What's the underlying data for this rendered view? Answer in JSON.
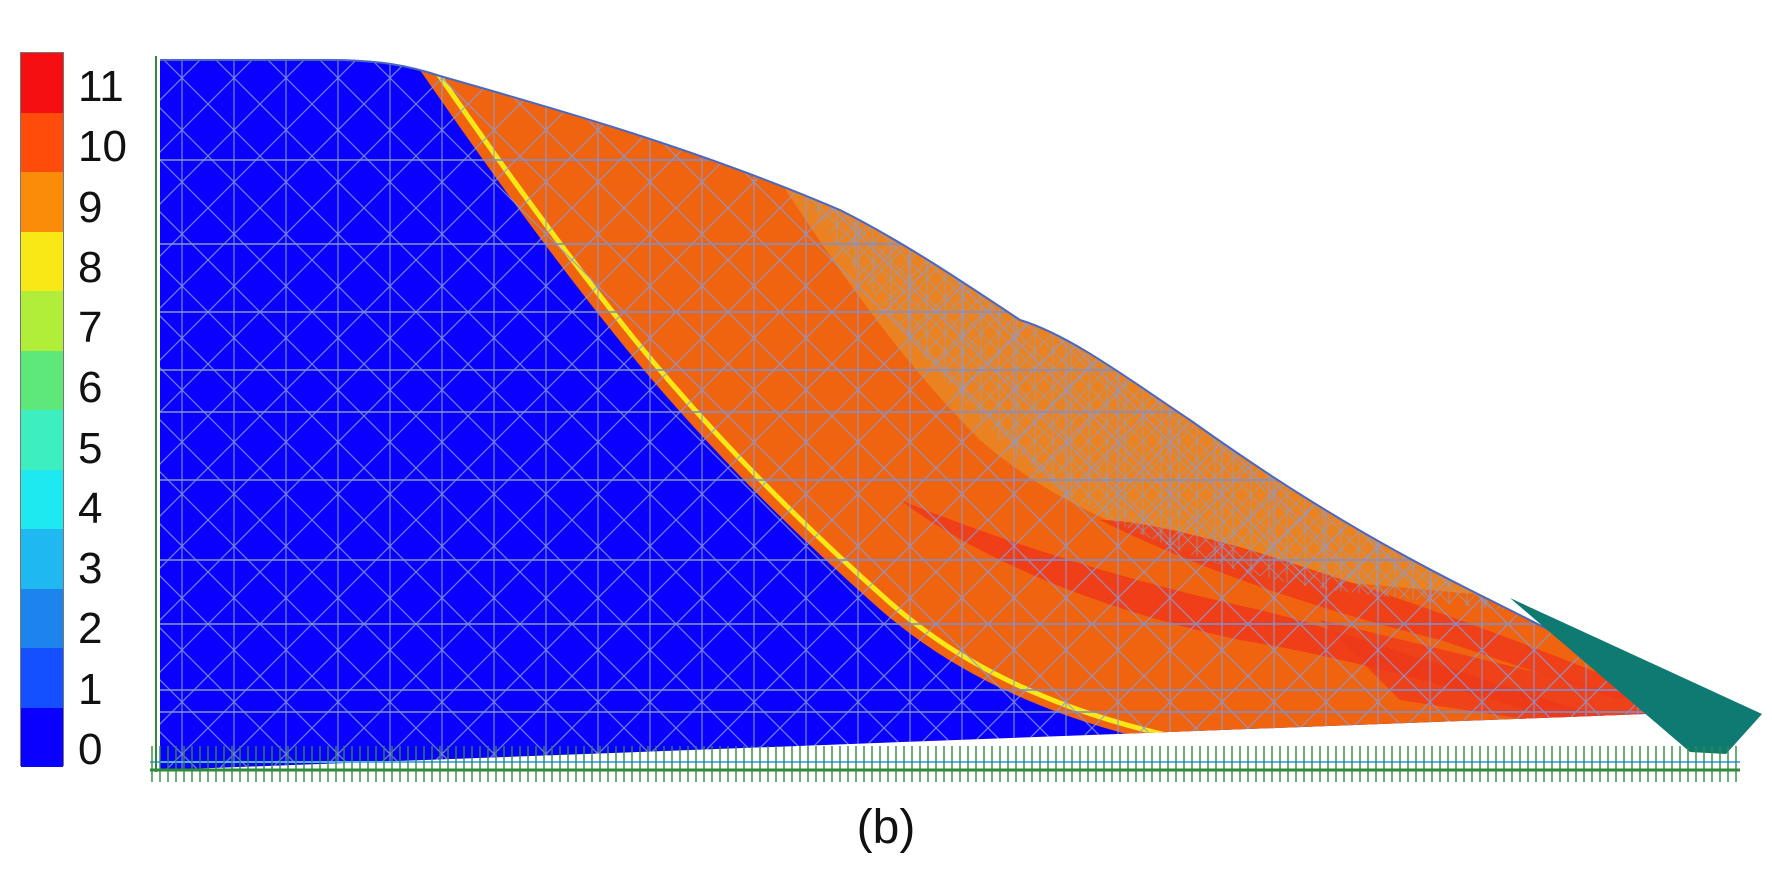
{
  "legend": {
    "labels": [
      "0",
      "1",
      "2",
      "3",
      "4",
      "5",
      "6",
      "7",
      "8",
      "9",
      "10",
      "11"
    ],
    "colors": [
      "#0a00ff",
      "#1450ff",
      "#1d84ee",
      "#20b8f0",
      "#1ee8f0",
      "#3deec0",
      "#5fe87a",
      "#b0ee3a",
      "#f8e815",
      "#fa8c0a",
      "#ff4c0a",
      "#f50f12"
    ]
  },
  "model": {
    "colors": {
      "stable_zone": "#0a00ff",
      "sliding_mass": "#f0640f",
      "upper_layer": "#e98c2a",
      "high_zone": "#ef3a1a",
      "toe_block": "#0e7a72",
      "mesh": "#8a9ad8",
      "supports": "#2e8b3a"
    }
  },
  "caption": "(b)"
}
